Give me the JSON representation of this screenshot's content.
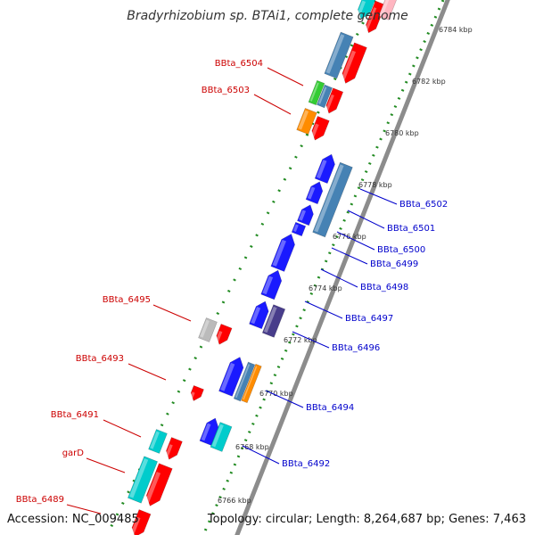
{
  "title": "Bradyrhizobium sp. BTAi1, complete genome",
  "footer": {
    "accession": "Accession: NC_009485",
    "summary": "Topology: circular; Length: 8,264,687 bp; Genes: 7,463"
  },
  "colors": {
    "backbone": "#8c8c8c",
    "tick": "#228b22",
    "left_label": "#cc0000",
    "right_label": "#0000cc",
    "red_gene": "#ff0000",
    "blue_gene": "#1a1aff",
    "steel_gene": "#4682b4",
    "cyan_gene": "#00cccc",
    "orange_gene": "#ff8c00",
    "green_gene": "#33cc33",
    "gray_gene": "#bbbbbb",
    "purple_gene": "#483d8b",
    "pink_gene": "#ffb6c1"
  },
  "kbp_ticks": [
    "6784 kbp",
    "6782 kbp",
    "6780 kbp",
    "6778 kbp",
    "6776 kbp",
    "6774 kbp",
    "6772 kbp",
    "6770 kbp",
    "6768 kbp",
    "6766 kbp"
  ],
  "left_labels": [
    "BBta_6504",
    "BBta_6503",
    "BBta_6495",
    "BBta_6493",
    "BBta_6491",
    "garD",
    "BBta_6489"
  ],
  "right_labels": [
    "BBta_6502",
    "BBta_6501",
    "BBta_6500",
    "BBta_6499",
    "BBta_6498",
    "BBta_6497",
    "BBta_6496",
    "BBta_6494",
    "BBta_6492"
  ]
}
